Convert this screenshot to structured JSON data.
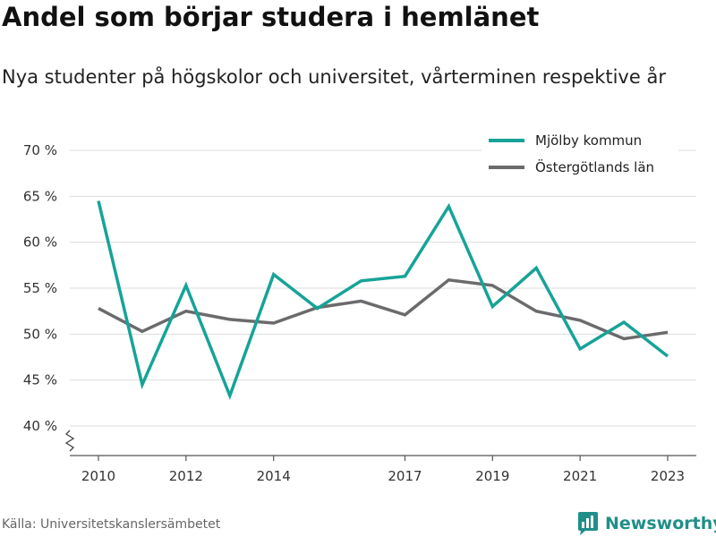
{
  "title": "Andel som börjar studera i hemlänet",
  "subtitle": "Nya studenter på högskolor och universitet, vårterminen respektive år",
  "source": "Källa: Universitetskanslersämbetet",
  "brand": {
    "name": "Newsworthy",
    "icon": "newsworthy-logo-icon",
    "color": "#1f8f88"
  },
  "chart_data": {
    "type": "line",
    "x": [
      2010,
      2011,
      2012,
      2013,
      2014,
      2015,
      2016,
      2017,
      2018,
      2019,
      2020,
      2021,
      2022,
      2023
    ],
    "x_ticks": [
      2010,
      2012,
      2014,
      2017,
      2019,
      2021,
      2023
    ],
    "y_ticks": [
      {
        "value": 40,
        "label": "40 %"
      },
      {
        "value": 45,
        "label": "45 %"
      },
      {
        "value": 50,
        "label": "50 %"
      },
      {
        "value": 55,
        "label": "55 %"
      },
      {
        "value": 60,
        "label": "60 %"
      },
      {
        "value": 65,
        "label": "65 %"
      },
      {
        "value": 70,
        "label": "70 %"
      }
    ],
    "ylim": [
      40,
      70
    ],
    "xlim": [
      2010,
      2023
    ],
    "grid": true,
    "broken_axis": true,
    "legend": "top-right",
    "series": [
      {
        "name": "Mjölby kommun",
        "color": "#17a398",
        "values": [
          64.5,
          44.5,
          55.3,
          43.3,
          56.5,
          52.8,
          55.8,
          56.3,
          63.9,
          53.0,
          57.2,
          48.4,
          51.3,
          47.6
        ]
      },
      {
        "name": "Östergötlands län",
        "color": "#6b6b6e",
        "values": [
          52.8,
          50.3,
          52.5,
          51.6,
          51.2,
          52.9,
          53.6,
          52.1,
          55.9,
          55.3,
          52.5,
          51.5,
          49.5,
          50.2
        ]
      }
    ]
  }
}
